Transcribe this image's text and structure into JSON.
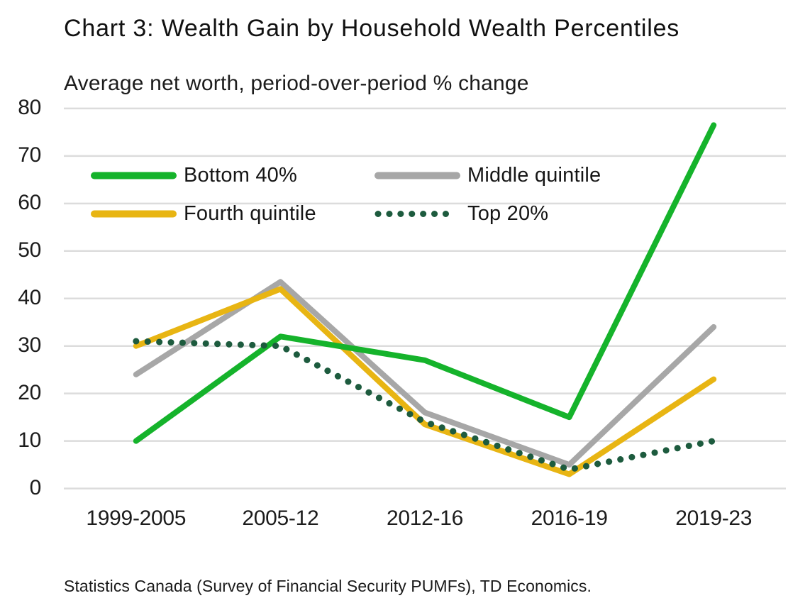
{
  "header": {
    "title": "Chart 3: Wealth Gain by Household Wealth Percentiles",
    "subtitle": "Average net worth, period-over-period % change"
  },
  "footer": {
    "source": "Statistics Canada (Survey of Financial Security PUMFs), TD Economics."
  },
  "colors": {
    "grid": "#dcdcdc",
    "background": "#ffffff",
    "text": "#161616"
  },
  "chart_data": {
    "type": "line",
    "title": "Chart 3: Wealth Gain by Household Wealth Percentiles",
    "subtitle": "Average net worth, period-over-period % change",
    "categories": [
      "1999-2005",
      "2005-12",
      "2012-16",
      "2016-19",
      "2019-23"
    ],
    "series": [
      {
        "name": "Bottom 40%",
        "values": [
          10,
          32,
          27,
          15,
          76.5
        ],
        "color": "#15b32b",
        "style": "solid"
      },
      {
        "name": "Middle quintile",
        "values": [
          24,
          43.5,
          16,
          5,
          34
        ],
        "color": "#a7a7a7",
        "style": "solid"
      },
      {
        "name": "Fourth quintile",
        "values": [
          30,
          42,
          13.5,
          3,
          23
        ],
        "color": "#e8b513",
        "style": "solid"
      },
      {
        "name": "Top 20%",
        "values": [
          31,
          30,
          14,
          4,
          10
        ],
        "color": "#1d5b3e",
        "style": "dotted"
      }
    ],
    "ylim": [
      0,
      80
    ],
    "ytick_step": 10,
    "xlabel": "",
    "ylabel": "",
    "grid": "horizontal",
    "legend_position": "top-left-inside",
    "z_order": [
      1,
      2,
      0,
      3
    ]
  }
}
